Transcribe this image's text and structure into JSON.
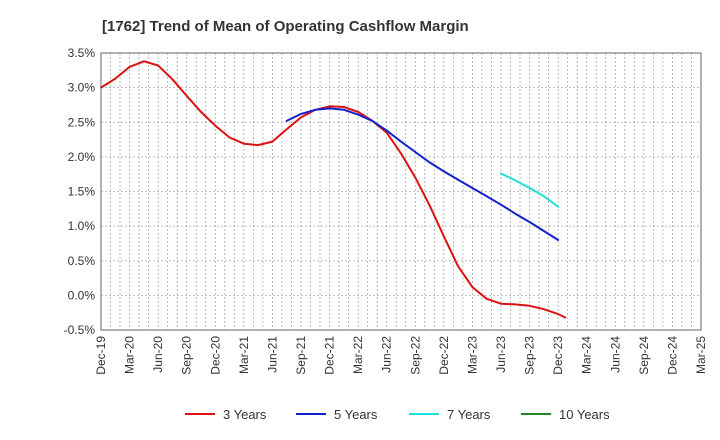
{
  "chart_data": {
    "type": "line",
    "title": "[1762]  Trend of Mean of Operating Cashflow Margin",
    "xlabel": "",
    "ylabel": "",
    "y_unit": "%",
    "ylim": [
      -0.5,
      3.5
    ],
    "yticks": [
      3.5,
      3.0,
      2.5,
      2.0,
      1.5,
      1.0,
      0.5,
      0.0,
      -0.5
    ],
    "ytick_labels": [
      "3.5%",
      "3.0%",
      "2.5%",
      "2.0%",
      "1.5%",
      "1.0%",
      "0.5%",
      "0.0%",
      "-0.5%"
    ],
    "categories": [
      "Dec-19",
      "Mar-20",
      "Jun-20",
      "Sep-20",
      "Dec-20",
      "Mar-21",
      "Jun-21",
      "Sep-21",
      "Dec-21",
      "Mar-22",
      "Jun-22",
      "Sep-22",
      "Dec-22",
      "Mar-23",
      "Jun-23",
      "Sep-23",
      "Dec-23",
      "Mar-24",
      "Jun-24",
      "Sep-24",
      "Dec-24",
      "Mar-25"
    ],
    "grid": true,
    "legend_position": "bottom",
    "series": [
      {
        "name": "3 Years",
        "color": "#dd1111",
        "points": [
          [
            0,
            3.0
          ],
          [
            0.5,
            3.13
          ],
          [
            1,
            3.3
          ],
          [
            1.5,
            3.38
          ],
          [
            2,
            3.32
          ],
          [
            2.5,
            3.12
          ],
          [
            3,
            2.88
          ],
          [
            3.5,
            2.65
          ],
          [
            4,
            2.45
          ],
          [
            4.5,
            2.28
          ],
          [
            5,
            2.19
          ],
          [
            5.5,
            2.17
          ],
          [
            6,
            2.22
          ],
          [
            6.5,
            2.4
          ],
          [
            7,
            2.57
          ],
          [
            7.5,
            2.68
          ],
          [
            8,
            2.73
          ],
          [
            8.5,
            2.72
          ],
          [
            9,
            2.65
          ],
          [
            9.5,
            2.52
          ],
          [
            10,
            2.35
          ],
          [
            10.5,
            2.05
          ],
          [
            11,
            1.7
          ],
          [
            11.5,
            1.3
          ],
          [
            12,
            0.85
          ],
          [
            12.5,
            0.42
          ],
          [
            13,
            0.12
          ],
          [
            13.5,
            -0.05
          ],
          [
            14,
            -0.12
          ],
          [
            14.5,
            -0.13
          ],
          [
            15,
            -0.15
          ],
          [
            15.5,
            -0.2
          ],
          [
            16,
            -0.27
          ],
          [
            16.25,
            -0.32
          ]
        ]
      },
      {
        "name": "5 Years",
        "color": "#1122cc",
        "points": [
          [
            6.5,
            2.52
          ],
          [
            7,
            2.62
          ],
          [
            7.5,
            2.68
          ],
          [
            8,
            2.7
          ],
          [
            8.5,
            2.68
          ],
          [
            9,
            2.61
          ],
          [
            9.5,
            2.52
          ],
          [
            10,
            2.38
          ],
          [
            10.5,
            2.22
          ],
          [
            11,
            2.07
          ],
          [
            11.5,
            1.92
          ],
          [
            12,
            1.79
          ],
          [
            12.5,
            1.67
          ],
          [
            13,
            1.55
          ],
          [
            13.5,
            1.43
          ],
          [
            14,
            1.31
          ],
          [
            14.5,
            1.18
          ],
          [
            15,
            1.06
          ],
          [
            15.5,
            0.93
          ],
          [
            16,
            0.8
          ]
        ]
      },
      {
        "name": "7 Years",
        "color": "#22dddd",
        "points": [
          [
            14,
            1.76
          ],
          [
            14.5,
            1.66
          ],
          [
            15,
            1.55
          ],
          [
            15.5,
            1.43
          ],
          [
            16,
            1.28
          ]
        ]
      },
      {
        "name": "10 Years",
        "color": "#228822",
        "points": []
      }
    ]
  }
}
